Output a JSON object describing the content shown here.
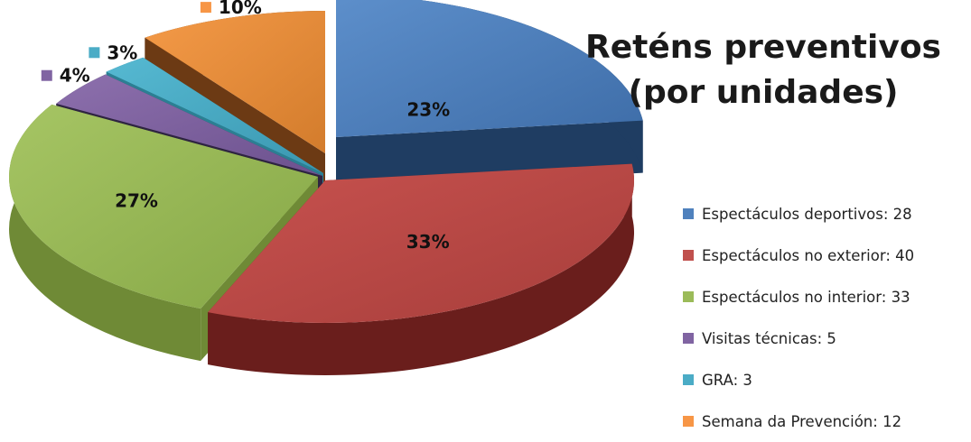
{
  "chart_data": {
    "type": "pie",
    "title_lines": [
      "Reténs preventivos",
      "(por unidades)"
    ],
    "categories": [
      "Espectáculos deportivos",
      "Espectáculos no exterior",
      "Espectáculos no interior",
      "Visitas técnicas",
      "GRA",
      "Semana da Prevención"
    ],
    "values": [
      28,
      40,
      33,
      5,
      3,
      12
    ],
    "percent_labels": [
      "23%",
      "33%",
      "27%",
      "4%",
      "3%",
      "10%"
    ],
    "legend_labels": [
      "Espectáculos deportivos: 28",
      "Espectáculos no exterior: 40",
      "Espectáculos no interior: 33",
      "Visitas técnicas: 5",
      "GRA: 3",
      "Semana da Prevención: 12"
    ],
    "colors": [
      "#4f81bd",
      "#c0504d",
      "#9bbb59",
      "#8064a2",
      "#4bacc6",
      "#f79646"
    ],
    "style": "3d-exploded",
    "legend_position": "right"
  }
}
